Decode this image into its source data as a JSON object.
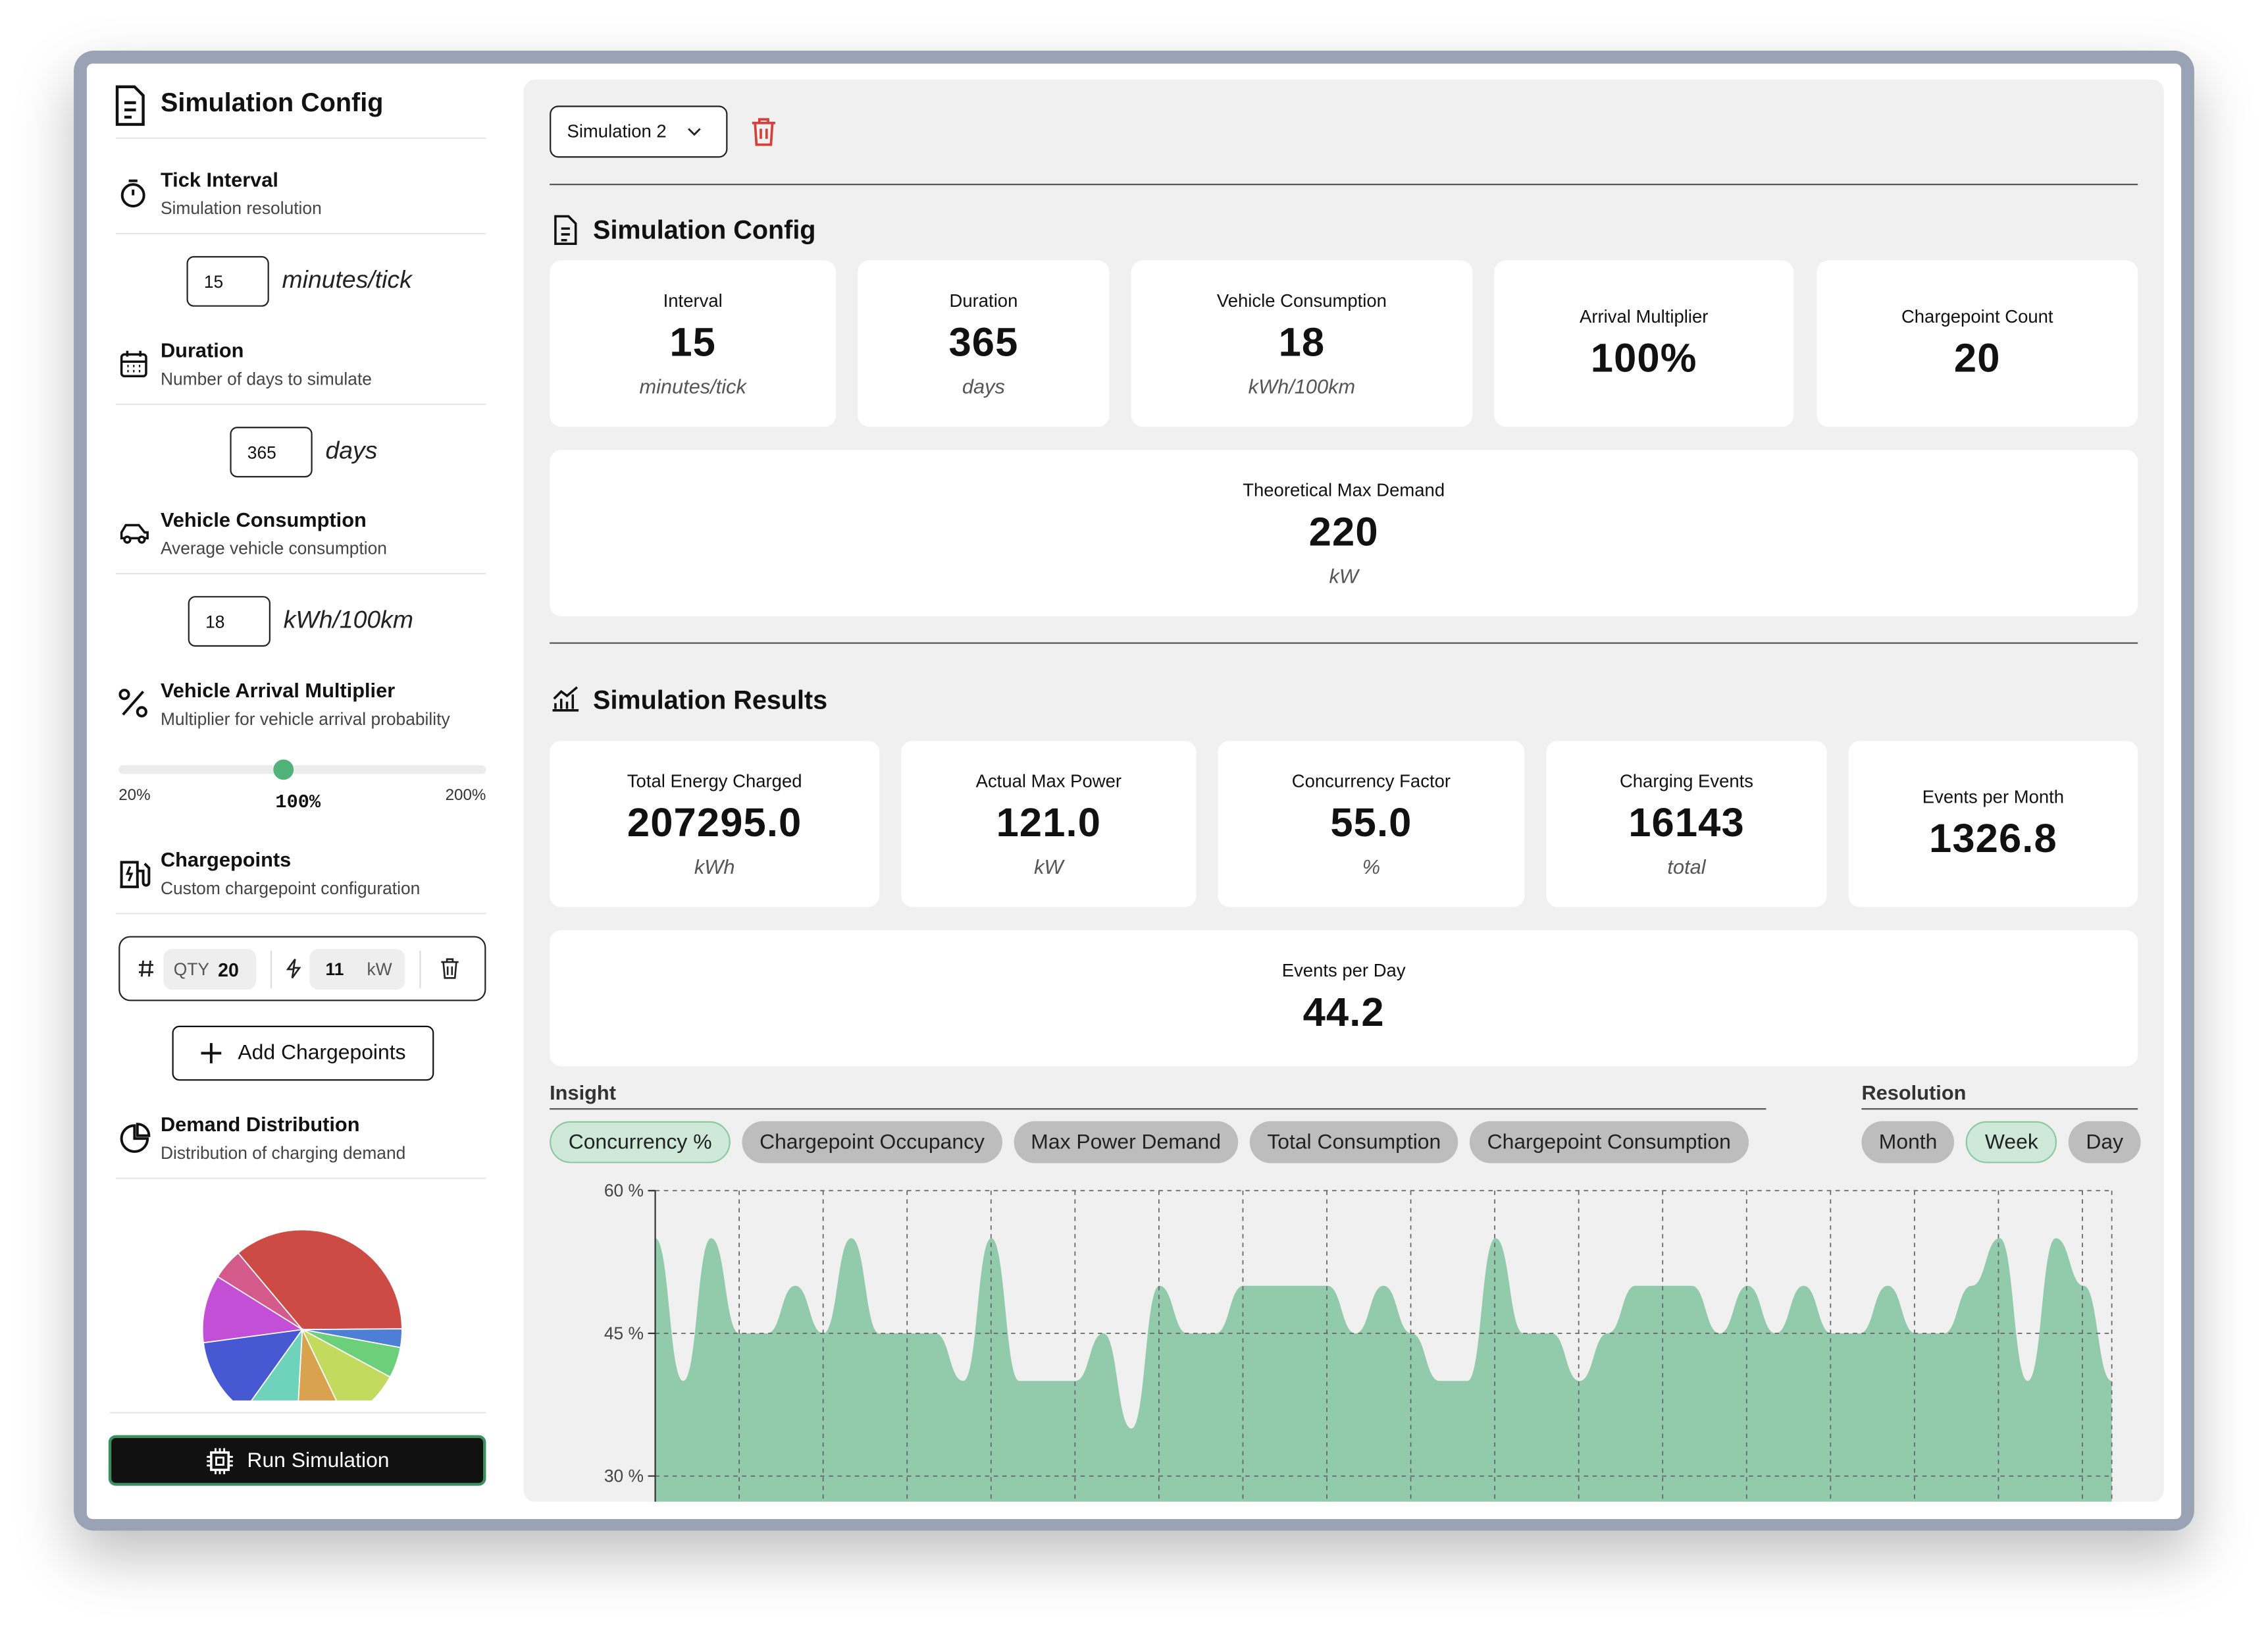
{
  "sidebar": {
    "title": "Simulation Config",
    "settings": [
      {
        "title": "Tick Interval",
        "subtitle": "Simulation resolution",
        "value": "15",
        "unit": "minutes/tick"
      },
      {
        "title": "Duration",
        "subtitle": "Number of days to simulate",
        "value": "365",
        "unit": "days"
      },
      {
        "title": "Vehicle Consumption",
        "subtitle": "Average vehicle consumption",
        "value": "18",
        "unit": "kWh/100km"
      }
    ],
    "arrival": {
      "title": "Vehicle Arrival Multiplier",
      "subtitle": "Multiplier for vehicle arrival probability",
      "min": "20%",
      "value": "100%",
      "max": "200%"
    },
    "chargepoints": {
      "title": "Chargepoints",
      "subtitle": "Custom chargepoint configuration",
      "qty_label": "QTY",
      "qty": "20",
      "power": "11",
      "power_unit": "kW",
      "add_button": "Add Chargepoints"
    },
    "demand": {
      "title": "Demand Distribution",
      "subtitle": "Distribution of charging demand"
    },
    "run_button": "Run Simulation"
  },
  "main": {
    "simulation_select": "Simulation 2",
    "config": {
      "title": "Simulation Config",
      "cards": [
        {
          "label": "Interval",
          "value": "15",
          "unit": "minutes/tick"
        },
        {
          "label": "Duration",
          "value": "365",
          "unit": "days"
        },
        {
          "label": "Vehicle Consumption",
          "value": "18",
          "unit": "kWh/100km"
        },
        {
          "label": "Arrival Multiplier",
          "value": "100%"
        },
        {
          "label": "Chargepoint Count",
          "value": "20"
        },
        {
          "label": "Theoretical Max Demand",
          "value": "220",
          "unit": "kW"
        }
      ]
    },
    "results": {
      "title": "Simulation Results",
      "cards": [
        {
          "label": "Total Energy Charged",
          "value": "207295.0",
          "unit": "kWh"
        },
        {
          "label": "Actual Max Power",
          "value": "121.0",
          "unit": "kW"
        },
        {
          "label": "Concurrency Factor",
          "value": "55.0",
          "unit": "%"
        },
        {
          "label": "Charging Events",
          "value": "16143",
          "unit": "total"
        },
        {
          "label": "Events per Month",
          "value": "1326.8"
        },
        {
          "label": "Events per Day",
          "value": "44.2"
        }
      ]
    },
    "insight": {
      "label": "Insight",
      "tabs": [
        "Concurrency %",
        "Chargepoint Occupancy",
        "Max Power Demand",
        "Total Consumption",
        "Chargepoint Consumption"
      ],
      "active": 0
    },
    "resolution": {
      "label": "Resolution",
      "tabs": [
        "Month",
        "Week",
        "Day"
      ],
      "active": 1
    }
  },
  "chart_data": [
    {
      "type": "area",
      "color": "#92cbab",
      "ylim": [
        27,
        60
      ],
      "yticks": [
        {
          "value": 60,
          "label": "60 %"
        },
        {
          "value": 45,
          "label": "45 %"
        },
        {
          "value": 30,
          "label": "30 %"
        }
      ],
      "grid": true,
      "values": [
        55,
        40,
        55,
        45,
        45,
        50,
        45,
        55,
        45,
        45,
        45,
        40,
        55,
        40,
        40,
        40,
        45,
        35,
        50,
        45,
        45,
        50,
        50,
        50,
        50,
        45,
        50,
        45,
        40,
        40,
        55,
        45,
        45,
        40,
        45,
        50,
        50,
        50,
        45,
        50,
        45,
        50,
        45,
        45,
        50,
        45,
        45,
        50,
        55,
        40,
        55,
        50,
        40
      ]
    },
    {
      "type": "pie",
      "values": [
        36,
        3,
        5,
        10,
        8,
        9,
        13,
        11,
        5
      ],
      "colors": [
        "#cc4b45",
        "#4f7ed6",
        "#6ccf7a",
        "#c3da5e",
        "#d8a24e",
        "#6fd3bb",
        "#4658d2",
        "#c24fd6",
        "#d45a8c"
      ]
    }
  ]
}
